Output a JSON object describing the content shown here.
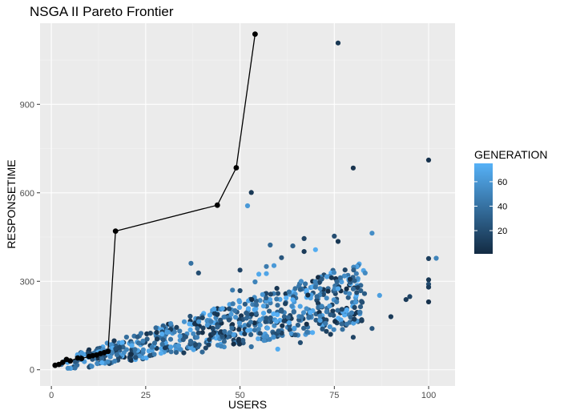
{
  "chart_data": {
    "type": "scatter",
    "title": "NSGA II  Pareto Frontier",
    "xlabel": "USERS",
    "ylabel": "RESPONSETIME",
    "xlim": [
      -3,
      107
    ],
    "ylim": [
      -55,
      1175
    ],
    "x_ticks": [
      0,
      25,
      50,
      75,
      100
    ],
    "y_ticks": [
      0,
      300,
      600,
      900
    ],
    "grid": true,
    "legend": {
      "title": "GENERATION",
      "placement": "right",
      "min": 1,
      "max": 75,
      "ticks": [
        20,
        40,
        60
      ],
      "color_low": "#132B43",
      "color_high": "#56B1F7"
    },
    "pareto_front": {
      "color": "#000000",
      "points": [
        [
          1,
          15
        ],
        [
          2,
          18
        ],
        [
          3,
          25
        ],
        [
          4,
          35
        ],
        [
          5,
          30
        ],
        [
          7,
          40
        ],
        [
          8,
          38
        ],
        [
          10,
          45
        ],
        [
          11,
          48
        ],
        [
          12,
          50
        ],
        [
          13,
          55
        ],
        [
          14,
          58
        ],
        [
          15,
          62
        ],
        [
          17,
          470
        ],
        [
          44,
          558
        ],
        [
          49,
          685
        ],
        [
          54,
          1138
        ]
      ]
    },
    "outliers": [
      [
        76,
        1108,
        8
      ],
      [
        80,
        684,
        6
      ],
      [
        100,
        711,
        5
      ],
      [
        53,
        601,
        9
      ],
      [
        52,
        556,
        62
      ],
      [
        75,
        453,
        20
      ],
      [
        76,
        435,
        8
      ],
      [
        85,
        463,
        55
      ],
      [
        67,
        445,
        15
      ],
      [
        64,
        420,
        30
      ],
      [
        58,
        423,
        35
      ],
      [
        70,
        407,
        72
      ],
      [
        67,
        401,
        10
      ],
      [
        37,
        361,
        40
      ],
      [
        39,
        328,
        20
      ],
      [
        57,
        350,
        45
      ],
      [
        59,
        353,
        62
      ],
      [
        61,
        380,
        25
      ],
      [
        57,
        326,
        68
      ],
      [
        50,
        338,
        15
      ],
      [
        55,
        324,
        70
      ],
      [
        102,
        378,
        50
      ],
      [
        100,
        377,
        12
      ],
      [
        100,
        305,
        8
      ],
      [
        100,
        290,
        20
      ],
      [
        100,
        280,
        10
      ],
      [
        100,
        230,
        5
      ],
      [
        95,
        248,
        15
      ],
      [
        94,
        238,
        10
      ],
      [
        87,
        252,
        65
      ],
      [
        76,
        275,
        70
      ],
      [
        80,
        274,
        35
      ],
      [
        82,
        268,
        30
      ],
      [
        83,
        258,
        28
      ],
      [
        79,
        258,
        55
      ],
      [
        66,
        272,
        30
      ],
      [
        70,
        280,
        40
      ],
      [
        48,
        270,
        45
      ],
      [
        50,
        268,
        18
      ],
      [
        54,
        298,
        50
      ],
      [
        56,
        255,
        60
      ],
      [
        60,
        70,
        72
      ],
      [
        66,
        92,
        20
      ],
      [
        74,
        120,
        10
      ],
      [
        80,
        110,
        15
      ],
      [
        85,
        140,
        25
      ],
      [
        90,
        180,
        10
      ],
      [
        53,
        78,
        40
      ],
      [
        45,
        80,
        50
      ],
      [
        40,
        60,
        35
      ]
    ]
  }
}
